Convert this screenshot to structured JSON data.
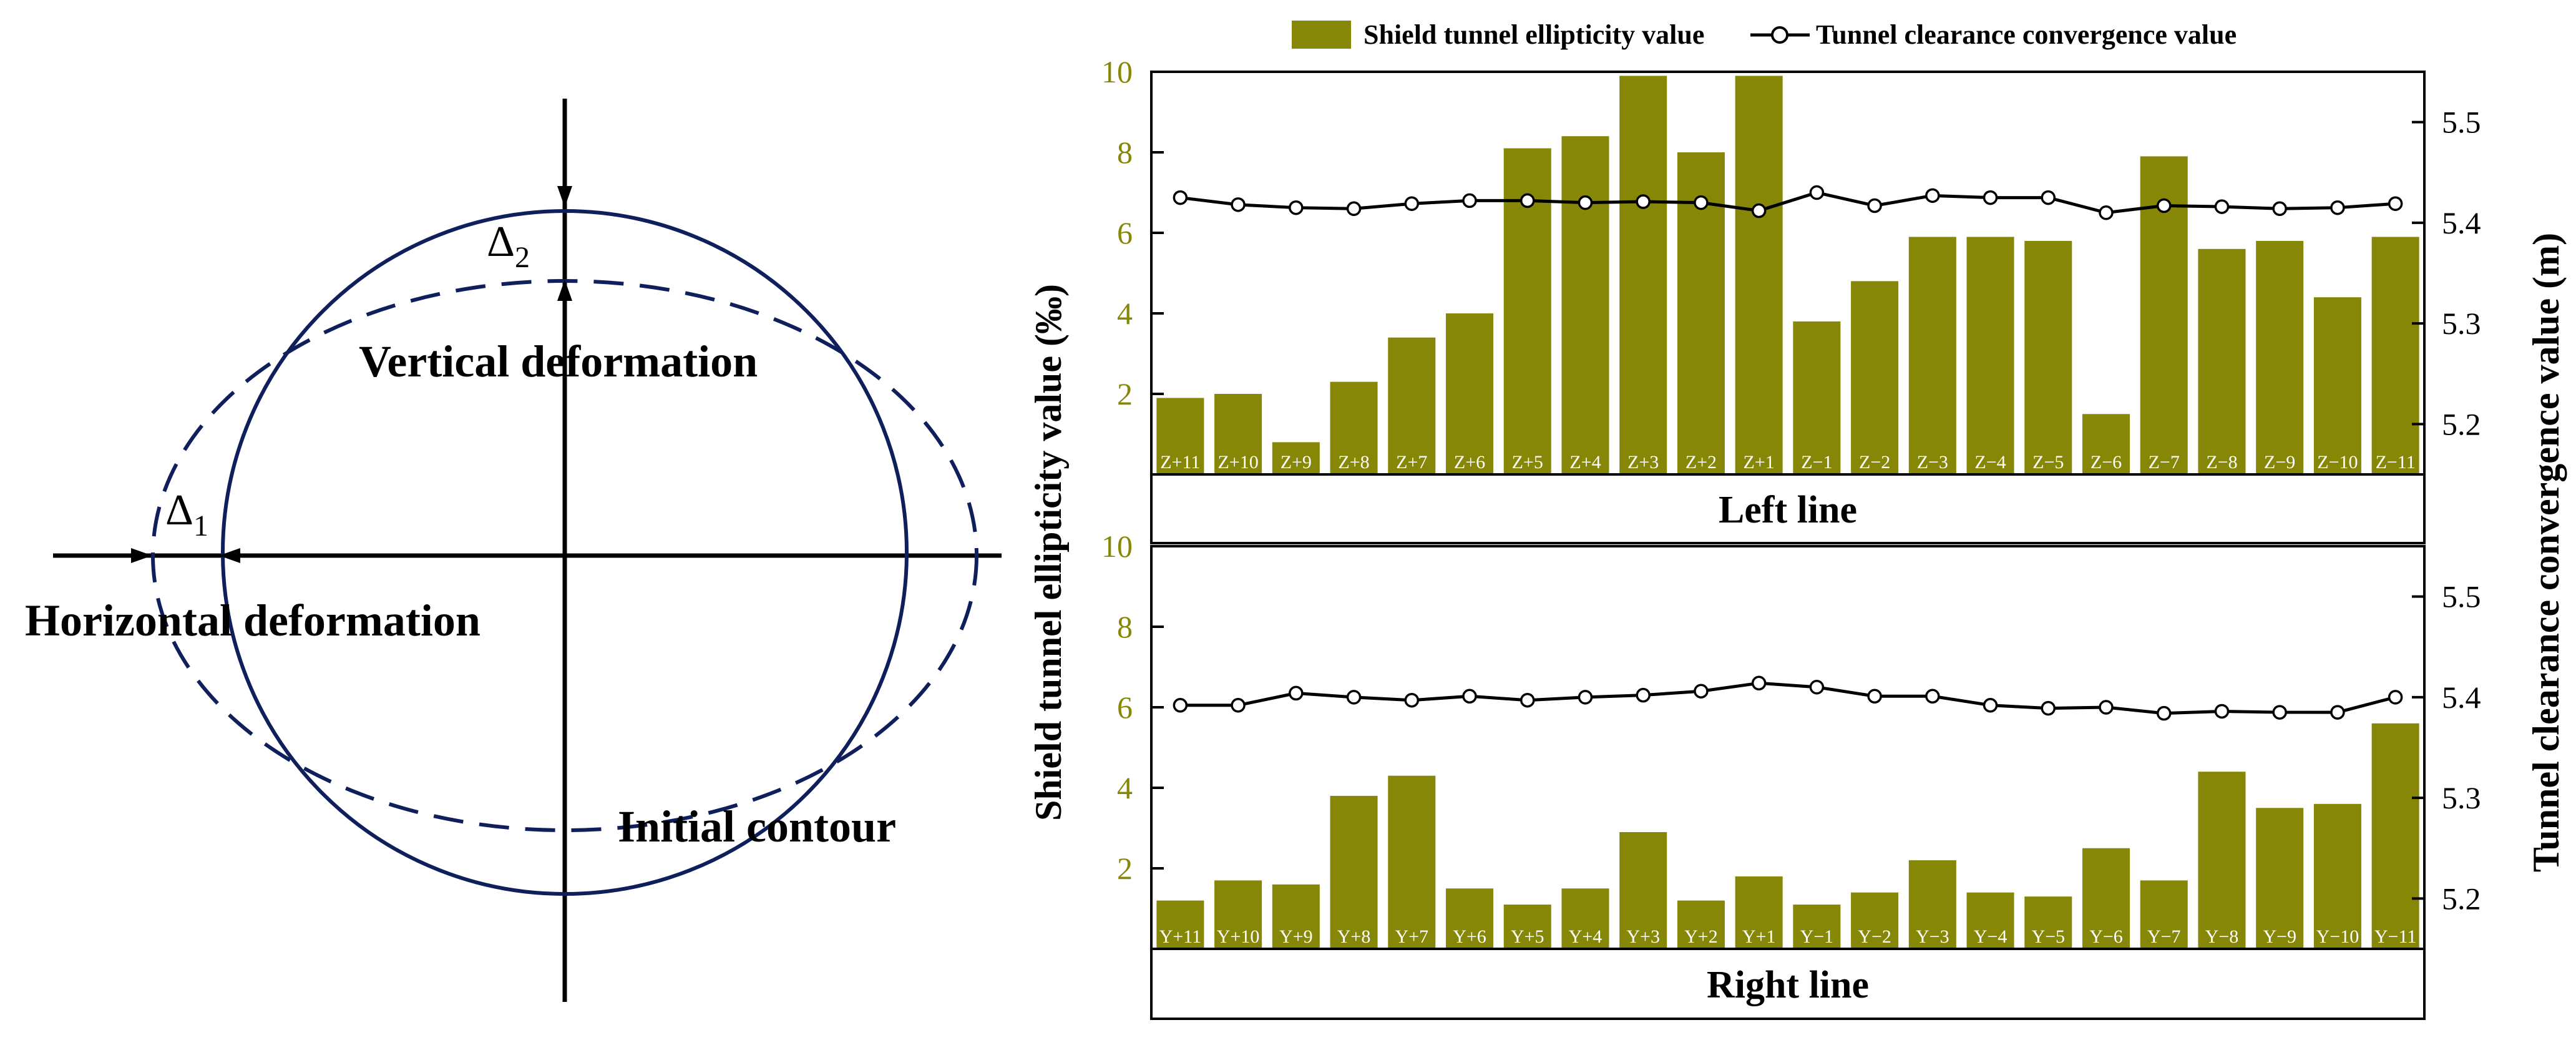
{
  "colors": {
    "bar": "#878707",
    "axis_left": "#878707",
    "line": "#000000",
    "contour": "#0e1f5c"
  },
  "diagram": {
    "delta2_base": "Δ",
    "delta2_sub": "2",
    "delta1_base": "Δ",
    "delta1_sub": "1",
    "vertical_label": "Vertical deformation",
    "horizontal_label": "Horizontal deformation",
    "initial_label": "Initial contour"
  },
  "legend": {
    "bar_label": "Shield tunnel ellipticity value",
    "line_label": "Tunnel clearance convergence value"
  },
  "axes": {
    "left_label": "Shield tunnel ellipticity value  (‰)",
    "right_label": "Tunnel clearance convergence value  (m)",
    "left_ticks": [
      "2",
      "4",
      "6",
      "8",
      "10"
    ],
    "right_ticks": [
      "5.2",
      "5.3",
      "5.4",
      "5.5"
    ]
  },
  "chart_data": [
    {
      "type": "bar",
      "panel_label": "Left line",
      "categories": [
        "Z+11",
        "Z+10",
        "Z+9",
        "Z+8",
        "Z+7",
        "Z+6",
        "Z+5",
        "Z+4",
        "Z+3",
        "Z+2",
        "Z+1",
        "Z−1",
        "Z−2",
        "Z−3",
        "Z−4",
        "Z−5",
        "Z−6",
        "Z−7",
        "Z−8",
        "Z−9",
        "Z−10",
        "Z−11"
      ],
      "series": [
        {
          "name": "Shield tunnel ellipticity value",
          "axis": "left",
          "values": [
            1.9,
            2.0,
            0.8,
            2.3,
            3.4,
            4.0,
            8.1,
            8.4,
            9.9,
            8.0,
            9.9,
            3.8,
            4.8,
            5.9,
            5.9,
            5.8,
            1.5,
            7.9,
            5.6,
            5.8,
            4.4,
            5.9
          ]
        },
        {
          "name": "Tunnel clearance convergence value",
          "axis": "right",
          "values": [
            5.425,
            5.418,
            5.415,
            5.414,
            5.419,
            5.422,
            5.422,
            5.42,
            5.421,
            5.42,
            5.412,
            5.43,
            5.417,
            5.427,
            5.425,
            5.425,
            5.41,
            5.417,
            5.416,
            5.414,
            5.415,
            5.419
          ]
        }
      ],
      "ylim_left": [
        0,
        10
      ],
      "ylim_right": [
        5.15,
        5.55
      ]
    },
    {
      "type": "bar",
      "panel_label": "Right line",
      "categories": [
        "Y+11",
        "Y+10",
        "Y+9",
        "Y+8",
        "Y+7",
        "Y+6",
        "Y+5",
        "Y+4",
        "Y+3",
        "Y+2",
        "Y+1",
        "Y−1",
        "Y−2",
        "Y−3",
        "Y−4",
        "Y−5",
        "Y−6",
        "Y−7",
        "Y−8",
        "Y−9",
        "Y−10",
        "Y−11"
      ],
      "series": [
        {
          "name": "Shield tunnel ellipticity value",
          "axis": "left",
          "values": [
            1.2,
            1.7,
            1.6,
            3.8,
            4.3,
            1.5,
            1.1,
            1.5,
            2.9,
            1.2,
            1.8,
            1.1,
            1.4,
            2.2,
            1.4,
            1.3,
            2.5,
            1.7,
            4.4,
            3.5,
            3.6,
            5.6
          ]
        },
        {
          "name": "Tunnel clearance convergence value",
          "axis": "right",
          "values": [
            5.392,
            5.392,
            5.404,
            5.4,
            5.397,
            5.401,
            5.397,
            5.4,
            5.402,
            5.406,
            5.414,
            5.41,
            5.401,
            5.401,
            5.392,
            5.389,
            5.39,
            5.384,
            5.386,
            5.385,
            5.385,
            5.4
          ]
        }
      ],
      "ylim_left": [
        0,
        10
      ],
      "ylim_right": [
        5.15,
        5.55
      ]
    }
  ]
}
